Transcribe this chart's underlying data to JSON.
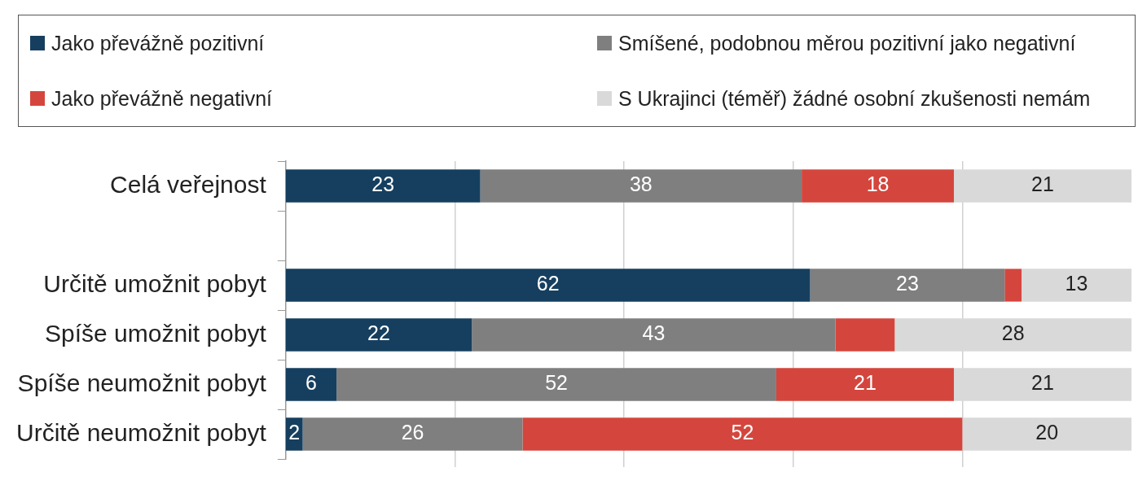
{
  "chart_data": {
    "type": "bar",
    "orientation": "horizontal",
    "stacked": true,
    "categories": [
      "Celá veřejnost",
      null,
      "Určitě umožnit pobyt",
      "Spíše umožnit pobyt",
      "Spíše neumožnit pobyt",
      "Určitě neumožnit pobyt"
    ],
    "series": [
      {
        "name": "Jako převážně pozitivní",
        "color": "#163f5f",
        "values": [
          23,
          null,
          62,
          22,
          6,
          2
        ],
        "value_labels": [
          "23",
          null,
          "62",
          "22",
          "6",
          "2"
        ]
      },
      {
        "name": "Smíšené, podobnou měrou pozitivní jako negativní",
        "color": "#7f7f7f",
        "values": [
          38,
          null,
          23,
          43,
          52,
          26
        ],
        "value_labels": [
          "38",
          null,
          "23",
          "43",
          "52",
          "26"
        ]
      },
      {
        "name": "Jako převážně negativní",
        "color": "#d4463d",
        "values": [
          18,
          null,
          2,
          7,
          21,
          52
        ],
        "value_labels": [
          "18",
          null,
          null,
          null,
          "21",
          "52"
        ]
      },
      {
        "name": "S Ukrajinci (téměř) žádné osobní zkušenosti nemám",
        "color": "#d9d9d9",
        "values": [
          21,
          null,
          13,
          28,
          21,
          20
        ],
        "value_labels": [
          "21",
          null,
          "13",
          "28",
          "21",
          "20"
        ]
      }
    ],
    "xlim": [
      0,
      100
    ],
    "xticks": [
      {
        "value": 20,
        "label": null
      },
      {
        "value": 40,
        "label": null
      },
      {
        "value": 60,
        "label": null
      },
      {
        "value": 80,
        "label": null
      }
    ],
    "grid": "x",
    "legend": "top",
    "tick_labels": "y"
  }
}
